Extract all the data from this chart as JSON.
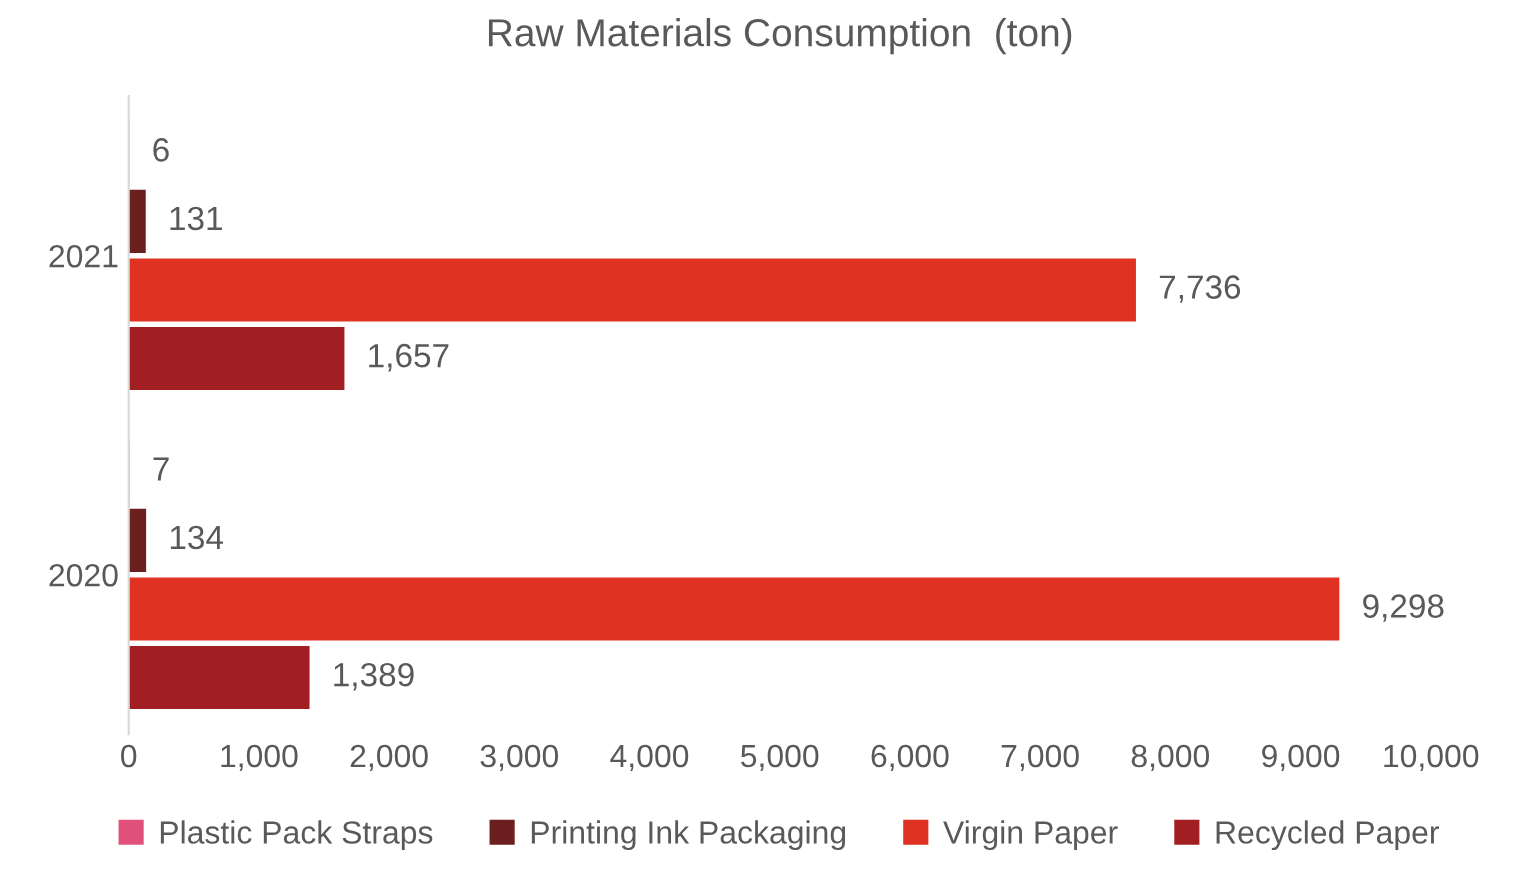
{
  "chart_data": {
    "type": "bar",
    "orientation": "horizontal",
    "title": "Raw Materials Consumption  (ton)",
    "categories": [
      "2021",
      "2020"
    ],
    "series": [
      {
        "name": "Plastic Pack Straps",
        "color": "#e0507a",
        "values": [
          6,
          7
        ],
        "value_labels": [
          "6",
          "7"
        ]
      },
      {
        "name": "Printing Ink Packaging",
        "color": "#6b1f1f",
        "values": [
          131,
          134
        ],
        "value_labels": [
          "131",
          "134"
        ]
      },
      {
        "name": "Virgin Paper",
        "color": "#e03222",
        "values": [
          7736,
          9298
        ],
        "value_labels": [
          "7,736",
          "9,298"
        ]
      },
      {
        "name": "Recycled Paper",
        "color": "#a11f22",
        "values": [
          1657,
          1389
        ],
        "value_labels": [
          "1,657",
          "1,389"
        ]
      }
    ],
    "xlim": [
      0,
      10000
    ],
    "xticks": [
      0,
      {
        "value": 1000,
        "label": "1,000"
      },
      {
        "value": 2000,
        "label": "2,000"
      },
      {
        "value": 3000,
        "label": "3,000"
      },
      {
        "value": 4000,
        "label": "4,000"
      },
      {
        "value": 5000,
        "label": "5,000"
      },
      {
        "value": 6000,
        "label": "6,000"
      },
      {
        "value": 7000,
        "label": "7,000"
      },
      {
        "value": 8000,
        "label": "8,000"
      },
      {
        "value": 9000,
        "label": "9,000"
      },
      {
        "value": 10000,
        "label": "10,000"
      }
    ],
    "grid": false,
    "legend": "bottom"
  }
}
